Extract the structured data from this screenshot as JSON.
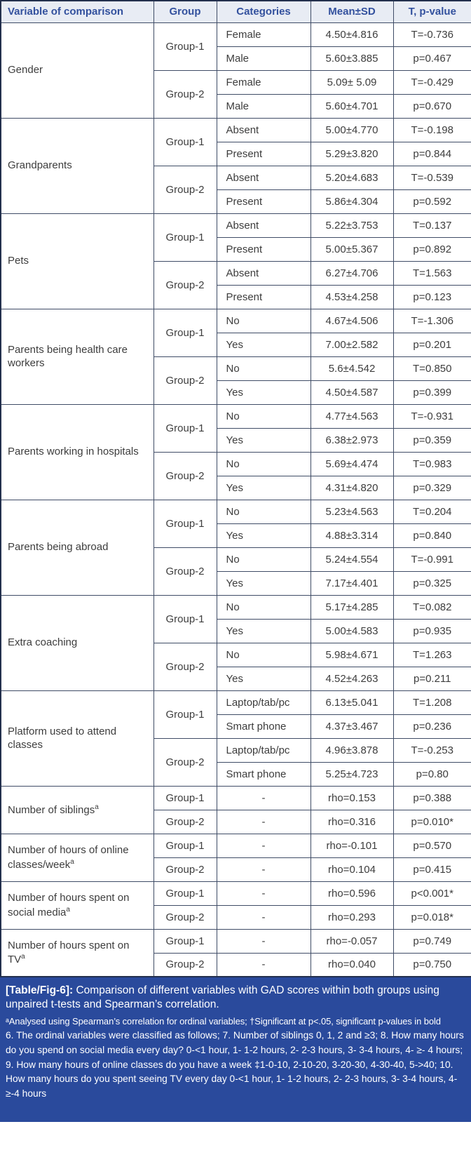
{
  "table": {
    "columns": [
      "Variable of comparison",
      "Group",
      "Categories",
      "Mean±SD",
      "T, p-value"
    ],
    "sections": [
      {
        "variable": "Gender",
        "sup": "",
        "groups": [
          {
            "group": "Group-1",
            "rows": [
              {
                "category": "Female",
                "mean": "4.50±4.816",
                "stat": "T=-0.736"
              },
              {
                "category": "Male",
                "mean": "5.60±3.885",
                "stat": "p=0.467"
              }
            ]
          },
          {
            "group": "Group-2",
            "rows": [
              {
                "category": "Female",
                "mean": "5.09± 5.09",
                "stat": "T=-0.429"
              },
              {
                "category": "Male",
                "mean": "5.60±4.701",
                "stat": "p=0.670"
              }
            ]
          }
        ]
      },
      {
        "variable": "Grandparents",
        "sup": "",
        "groups": [
          {
            "group": "Group-1",
            "rows": [
              {
                "category": "Absent",
                "mean": "5.00±4.770",
                "stat": "T=-0.198"
              },
              {
                "category": "Present",
                "mean": "5.29±3.820",
                "stat": "p=0.844"
              }
            ]
          },
          {
            "group": "Group-2",
            "rows": [
              {
                "category": "Absent",
                "mean": "5.20±4.683",
                "stat": "T=-0.539"
              },
              {
                "category": "Present",
                "mean": "5.86±4.304",
                "stat": "p=0.592"
              }
            ]
          }
        ]
      },
      {
        "variable": "Pets",
        "sup": "",
        "groups": [
          {
            "group": "Group-1",
            "rows": [
              {
                "category": "Absent",
                "mean": "5.22±3.753",
                "stat": "T=0.137"
              },
              {
                "category": "Present",
                "mean": "5.00±5.367",
                "stat": "p=0.892"
              }
            ]
          },
          {
            "group": "Group-2",
            "rows": [
              {
                "category": "Absent",
                "mean": "6.27±4.706",
                "stat": "T=1.563"
              },
              {
                "category": "Present",
                "mean": "4.53±4.258",
                "stat": "p=0.123"
              }
            ]
          }
        ]
      },
      {
        "variable": "Parents being health care workers",
        "sup": "",
        "groups": [
          {
            "group": "Group-1",
            "rows": [
              {
                "category": "No",
                "mean": "4.67±4.506",
                "stat": "T=-1.306"
              },
              {
                "category": "Yes",
                "mean": "7.00±2.582",
                "stat": "p=0.201"
              }
            ]
          },
          {
            "group": "Group-2",
            "rows": [
              {
                "category": "No",
                "mean": "5.6±4.542",
                "stat": "T=0.850"
              },
              {
                "category": "Yes",
                "mean": "4.50±4.587",
                "stat": "p=0.399"
              }
            ]
          }
        ]
      },
      {
        "variable": "Parents working in hospitals",
        "sup": "",
        "groups": [
          {
            "group": "Group-1",
            "rows": [
              {
                "category": "No",
                "mean": "4.77±4.563",
                "stat": "T=-0.931"
              },
              {
                "category": "Yes",
                "mean": "6.38±2.973",
                "stat": "p=0.359"
              }
            ]
          },
          {
            "group": "Group-2",
            "rows": [
              {
                "category": "No",
                "mean": "5.69±4.474",
                "stat": "T=0.983"
              },
              {
                "category": "Yes",
                "mean": "4.31±4.820",
                "stat": "p=0.329"
              }
            ]
          }
        ]
      },
      {
        "variable": "Parents being abroad",
        "sup": "",
        "groups": [
          {
            "group": "Group-1",
            "rows": [
              {
                "category": "No",
                "mean": "5.23±4.563",
                "stat": "T=0.204"
              },
              {
                "category": "Yes",
                "mean": "4.88±3.314",
                "stat": "p=0.840"
              }
            ]
          },
          {
            "group": "Group-2",
            "rows": [
              {
                "category": "No",
                "mean": "5.24±4.554",
                "stat": "T=-0.991"
              },
              {
                "category": "Yes",
                "mean": "7.17±4.401",
                "stat": "p=0.325"
              }
            ]
          }
        ]
      },
      {
        "variable": "Extra coaching",
        "sup": "",
        "groups": [
          {
            "group": "Group-1",
            "rows": [
              {
                "category": "No",
                "mean": "5.17±4.285",
                "stat": "T=0.082"
              },
              {
                "category": "Yes",
                "mean": "5.00±4.583",
                "stat": "p=0.935"
              }
            ]
          },
          {
            "group": "Group-2",
            "rows": [
              {
                "category": "No",
                "mean": "5.98±4.671",
                "stat": "T=1.263"
              },
              {
                "category": "Yes",
                "mean": "4.52±4.263",
                "stat": "p=0.211"
              }
            ]
          }
        ]
      },
      {
        "variable": "Platform used to attend classes",
        "sup": "",
        "groups": [
          {
            "group": "Group-1",
            "rows": [
              {
                "category": "Laptop/tab/pc",
                "mean": "6.13±5.041",
                "stat": "T=1.208"
              },
              {
                "category": "Smart phone",
                "mean": "4.37±3.467",
                "stat": "p=0.236"
              }
            ]
          },
          {
            "group": "Group-2",
            "rows": [
              {
                "category": "Laptop/tab/pc",
                "mean": "4.96±3.878",
                "stat": "T=-0.253"
              },
              {
                "category": "Smart phone",
                "mean": "5.25±4.723",
                "stat": "p=0.80"
              }
            ]
          }
        ]
      },
      {
        "variable": "Number of siblings",
        "sup": "a",
        "groups": [
          {
            "group": "Group-1",
            "rows": [
              {
                "category": "-",
                "mean": "rho=0.153",
                "stat": "p=0.388"
              }
            ]
          },
          {
            "group": "Group-2",
            "rows": [
              {
                "category": "-",
                "mean": "rho=0.316",
                "stat": "p=0.010*"
              }
            ]
          }
        ]
      },
      {
        "variable": "Number of hours of online classes/week",
        "sup": "a",
        "groups": [
          {
            "group": "Group-1",
            "rows": [
              {
                "category": "-",
                "mean": "rho=-0.101",
                "stat": "p=0.570"
              }
            ]
          },
          {
            "group": "Group-2",
            "rows": [
              {
                "category": "-",
                "mean": "rho=0.104",
                "stat": "p=0.415"
              }
            ]
          }
        ]
      },
      {
        "variable": "Number of hours spent on social media",
        "sup": "a",
        "groups": [
          {
            "group": "Group-1",
            "rows": [
              {
                "category": "-",
                "mean": "rho=0.596",
                "stat": "p<0.001*"
              }
            ]
          },
          {
            "group": "Group-2",
            "rows": [
              {
                "category": "-",
                "mean": "rho=0.293",
                "stat": "p=0.018*"
              }
            ]
          }
        ]
      },
      {
        "variable": "Number of hours spent on TV",
        "sup": "a",
        "groups": [
          {
            "group": "Group-1",
            "rows": [
              {
                "category": "-",
                "mean": "rho=-0.057",
                "stat": "p=0.749"
              }
            ]
          },
          {
            "group": "Group-2",
            "rows": [
              {
                "category": "-",
                "mean": "rho=0.040",
                "stat": "p=0.750"
              }
            ]
          }
        ]
      }
    ]
  },
  "footer": {
    "caption_label": "[Table/Fig-6]:",
    "caption_text": "Comparison of different variables with GAD scores within both groups using unpaired t-tests and Spearman’s correlation.",
    "footnote_significance": "ᵃAnalysed using Spearman’s correlation for ordinal variables; †Significant at p<.05, significant p-values in bold",
    "footnote_ordinal": "6. The ordinal variables were classified as follows; 7. Number of siblings 0, 1, 2 and ≥3; 8. How many hours do you spend on social media every day? 0-<1 hour, 1- 1-2 hours, 2- 2-3 hours, 3- 3-4 hours, 4- ≥- 4 hours; 9. How many hours of online classes do you have a week ‡1-0-10, 2-10-20, 3-20-30, 4-30-40, 5->40; 10. How many hours do you spent seeing TV every day 0-<1 hour, 1- 1-2 hours, 2- 2-3 hours, 3- 3-4 hours, 4- ≥-4 hours"
  },
  "colors": {
    "header_bg": "#e8ecf4",
    "header_text": "#33519e",
    "footer_bg": "#2a4a9c",
    "inner_border": "#3f4c66",
    "outer_border": "#23304d",
    "body_text": "#3d3d3d"
  }
}
